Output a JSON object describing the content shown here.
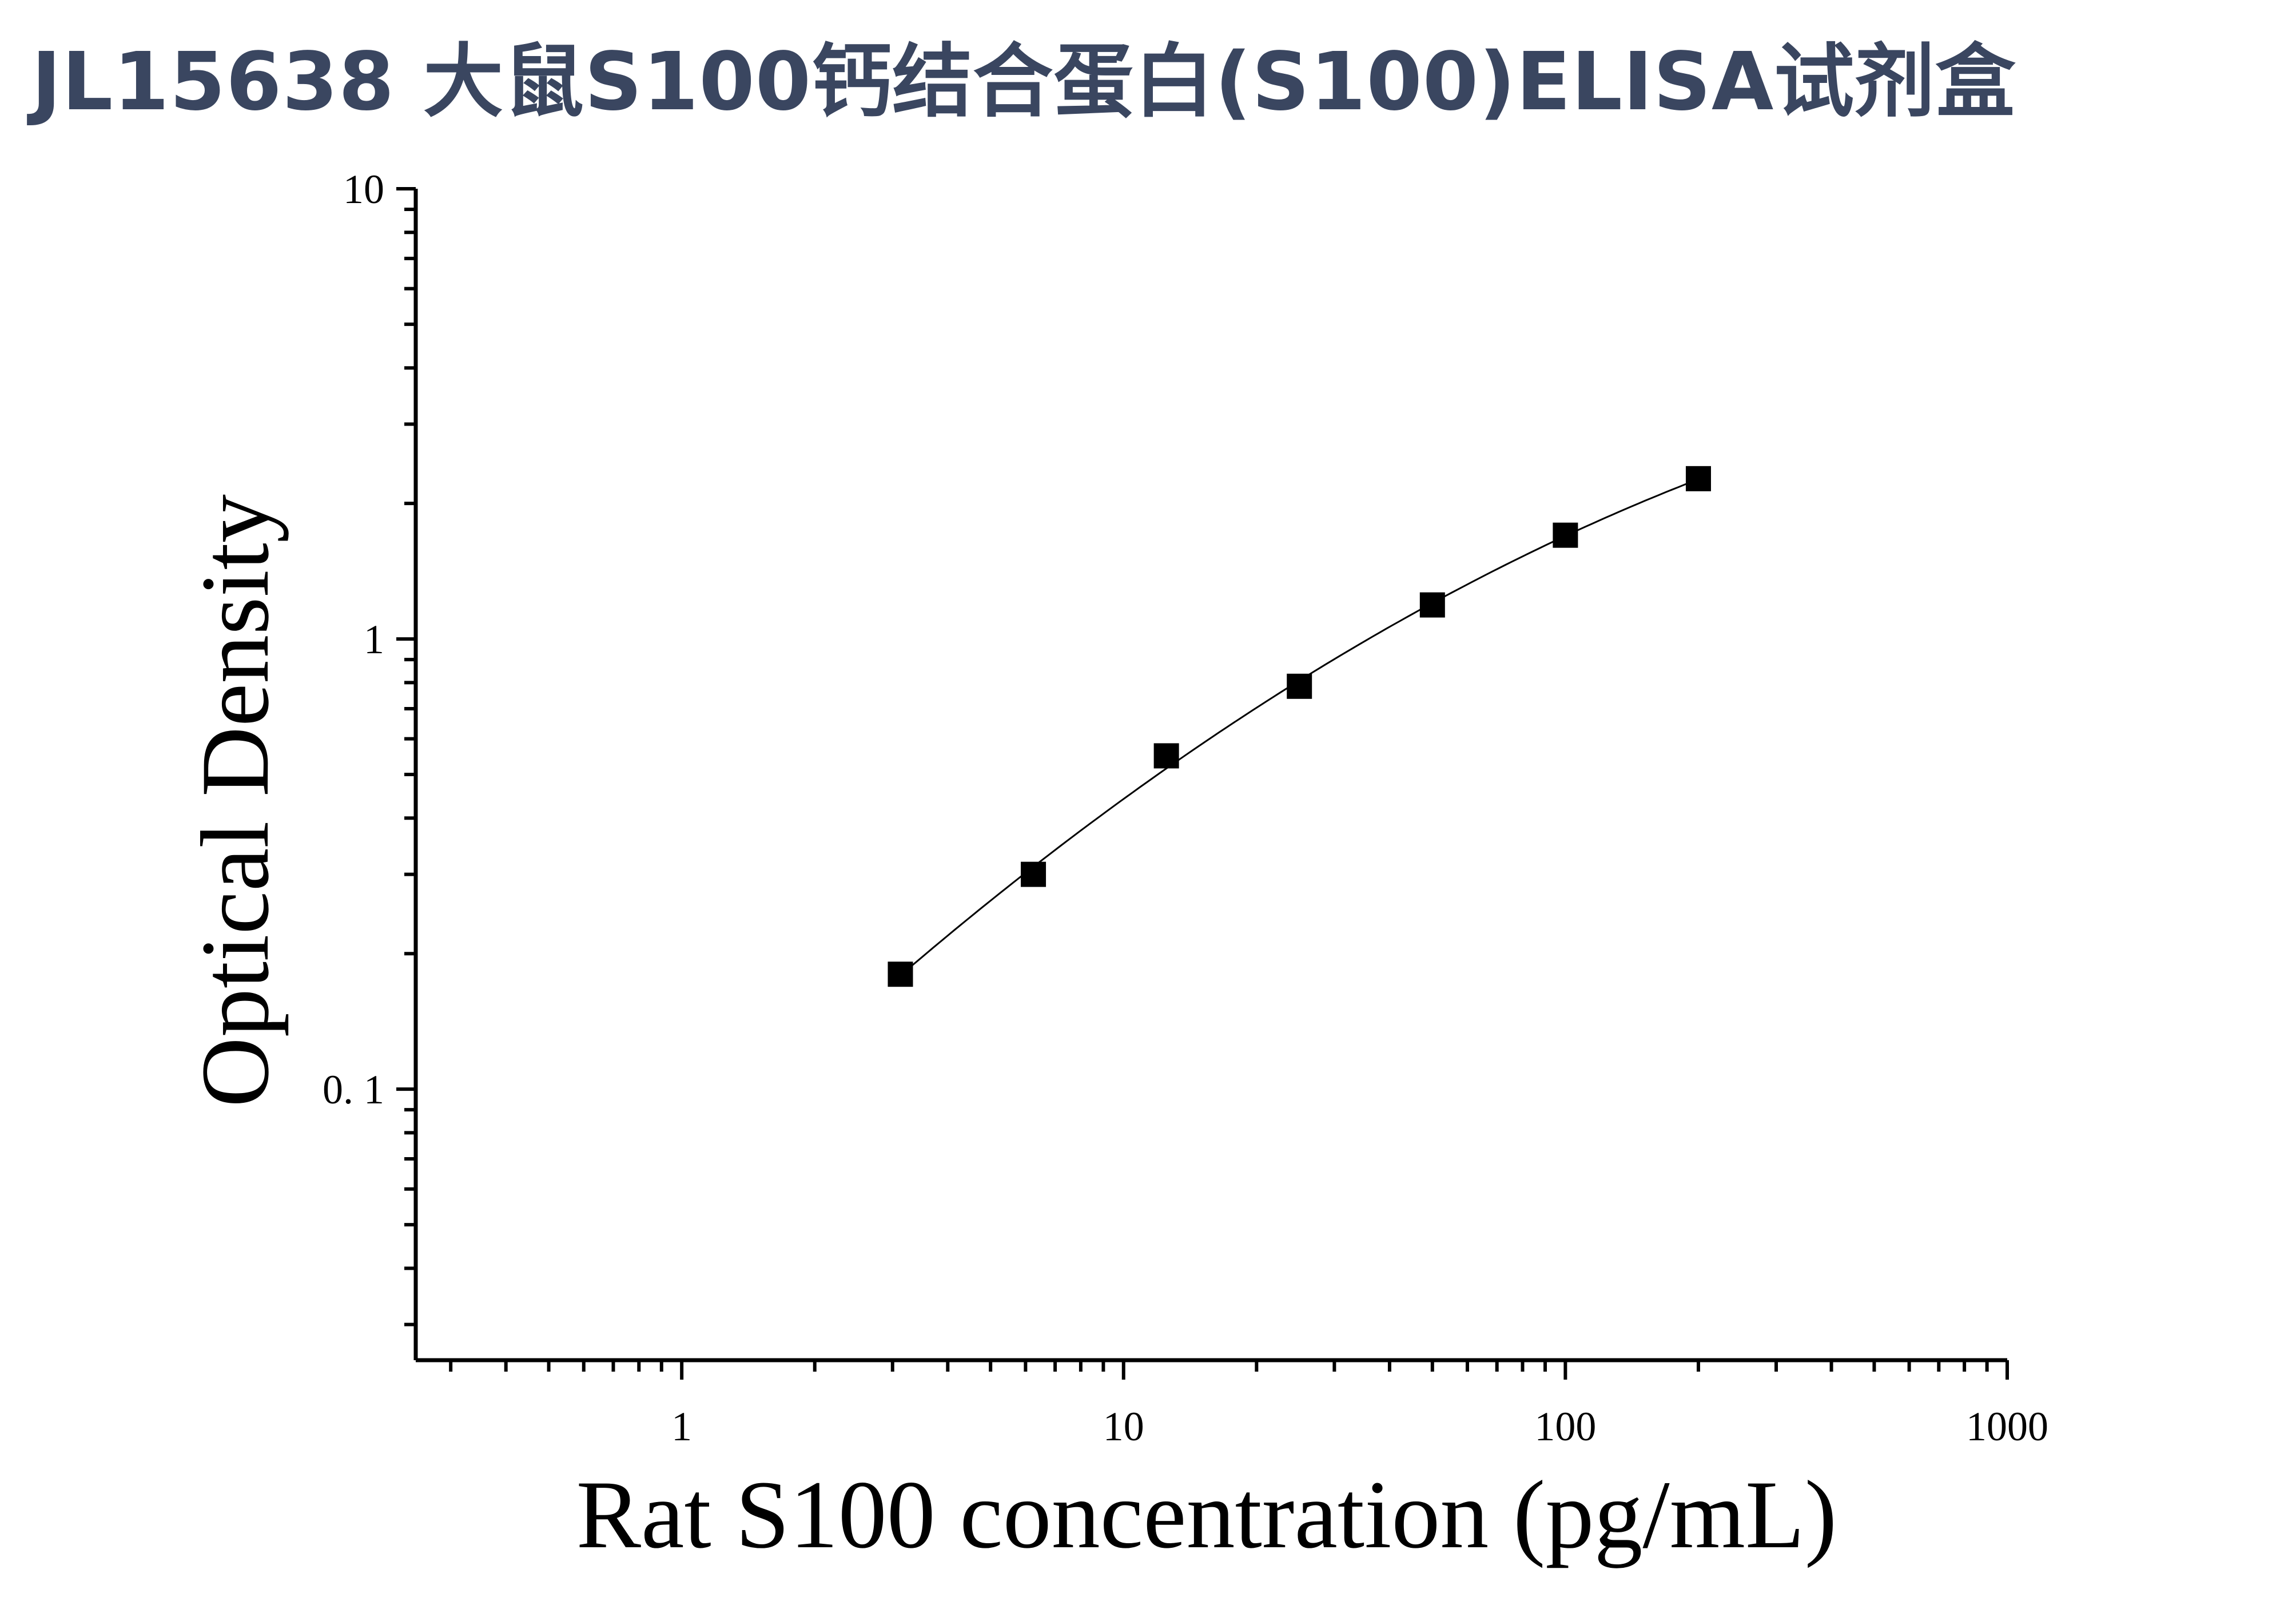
{
  "header": {
    "title": "JL15638 大鼠S100钙结合蛋白(S100)ELISA试剂盒"
  },
  "chart_data": {
    "type": "scatter",
    "xlabel": "Rat S100 concentration (pg/mL)",
    "ylabel": "Optical Density",
    "x_scale": "log",
    "y_scale": "log",
    "xlim": [
      0.25,
      1000
    ],
    "ylim": [
      0.025,
      10
    ],
    "x_ticks": [
      {
        "value": 1,
        "label": "1"
      },
      {
        "value": 10,
        "label": "10"
      },
      {
        "value": 100,
        "label": "100"
      },
      {
        "value": 1000,
        "label": "1000"
      }
    ],
    "y_ticks": [
      {
        "value": 0.1,
        "label": "0. 1"
      },
      {
        "value": 1,
        "label": "1"
      },
      {
        "value": 10,
        "label": "10"
      }
    ],
    "grid": false,
    "fit_curve": true,
    "marker": "square",
    "marker_color": "#000000",
    "series": [
      {
        "x": [
          3.125,
          6.25,
          12.5,
          25,
          50,
          100,
          200
        ],
        "y": [
          0.18,
          0.3,
          0.55,
          0.785,
          1.19,
          1.7,
          2.27
        ]
      }
    ]
  }
}
